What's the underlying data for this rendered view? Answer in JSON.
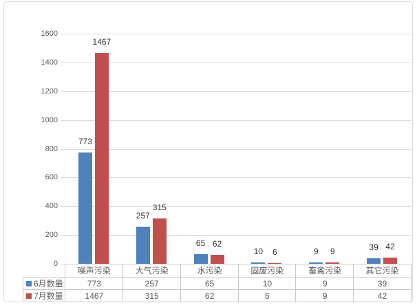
{
  "chart_data": {
    "type": "bar",
    "title": "",
    "categories": [
      "噪声污染",
      "大气污染",
      "水污染",
      "固废污染",
      "畜禽污染",
      "其它污染"
    ],
    "series": [
      {
        "name": "6月数量",
        "color": "#4F81BD",
        "values": [
          773,
          257,
          65,
          10,
          9,
          39
        ]
      },
      {
        "name": "7月数量",
        "color": "#C0504D",
        "values": [
          1467,
          315,
          62,
          6,
          9,
          42
        ]
      }
    ],
    "xlabel": "",
    "ylabel": "",
    "ylim": [
      0,
      1600
    ],
    "ytick_step": 200,
    "grid": true,
    "data_labels": true,
    "legend_position": "data-table-left"
  },
  "colors": {
    "background": "#FFFFFF",
    "frame_border": "#D9D9D9",
    "gridline": "#D9D9D9",
    "table_border": "#C9C9C9",
    "axis_text": "#595959",
    "table_text": "#595959",
    "data_label_text": "#333333"
  }
}
